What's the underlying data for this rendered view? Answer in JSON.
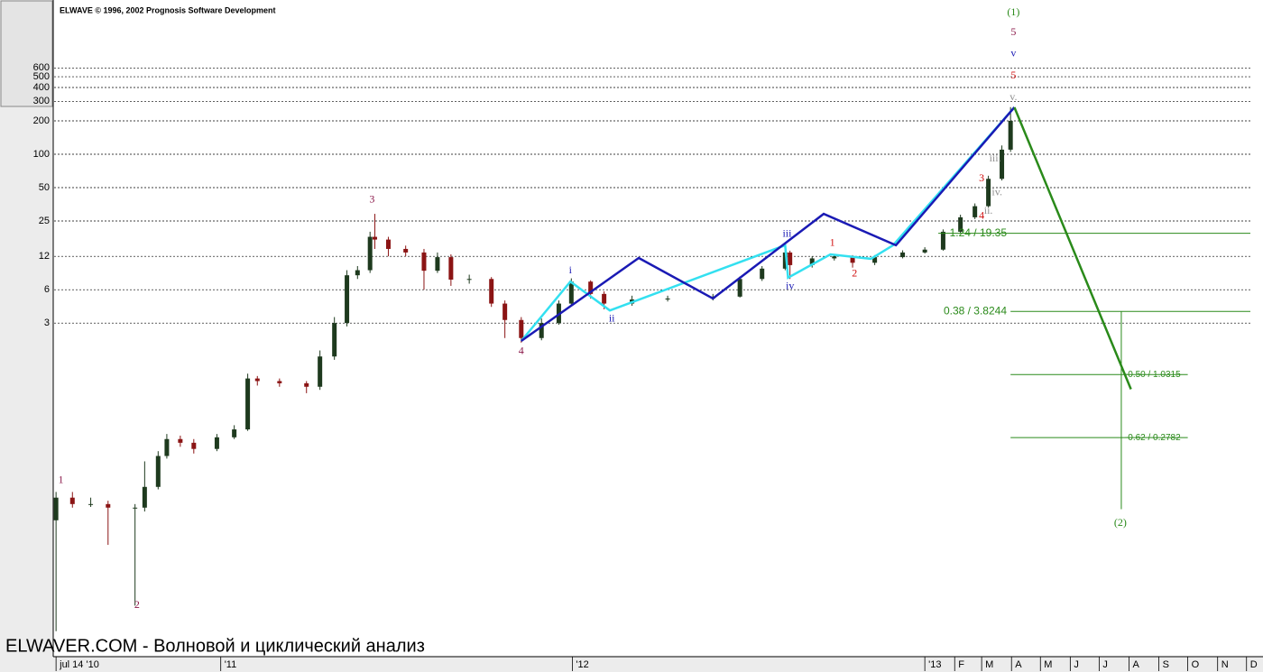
{
  "chart_data": {
    "type": "candlestick",
    "title": "ELWAVE © 1996, 2002 Prognosis Software Development",
    "footer": "ELWAVER.COM - Волновой и циклический анализ",
    "log_scale": true,
    "grid": true,
    "xlim": [
      -2,
      1240
    ],
    "ylim": [
      0.003,
      2460
    ],
    "yticks": [
      3,
      6,
      12,
      25,
      50,
      100,
      200,
      300,
      400,
      500,
      600
    ],
    "xticks": [
      {
        "value": 0,
        "label": "jul 14 '10"
      },
      {
        "value": 171,
        "label": "'11"
      },
      {
        "value": 536,
        "label": "'12"
      },
      {
        "value": 902,
        "label": "'13"
      },
      {
        "value": 933,
        "label": "F"
      },
      {
        "value": 961,
        "label": "M"
      },
      {
        "value": 992,
        "label": "A"
      },
      {
        "value": 1022,
        "label": "M"
      },
      {
        "value": 1053,
        "label": "J"
      },
      {
        "value": 1083,
        "label": "J"
      },
      {
        "value": 1114,
        "label": "A"
      },
      {
        "value": 1145,
        "label": "S"
      },
      {
        "value": 1175,
        "label": "O"
      },
      {
        "value": 1206,
        "label": "N"
      },
      {
        "value": 1236,
        "label": "D"
      }
    ],
    "up_color": "#1e3a1e",
    "down_color": "#8b1414",
    "candles": {
      "x": [
        0,
        17,
        36,
        54,
        82,
        92,
        106,
        115,
        129,
        143,
        167,
        185,
        199,
        209,
        232,
        260,
        274,
        289,
        302,
        313,
        326,
        331,
        345,
        363,
        382,
        396,
        410,
        429,
        452,
        466,
        483,
        504,
        522,
        535,
        555,
        569,
        598,
        635,
        682,
        710,
        733,
        757,
        762,
        785,
        808,
        827,
        850,
        879,
        902,
        921,
        939,
        954,
        968,
        982,
        991
      ],
      "open": [
        0.05,
        0.08,
        0.07,
        0.07,
        0.065,
        0.065,
        0.1,
        0.19,
        0.27,
        0.25,
        0.22,
        0.28,
        0.33,
        0.95,
        0.9,
        0.86,
        0.8,
        1.5,
        3,
        8.1,
        9,
        18,
        17,
        14,
        13,
        8.9,
        11.8,
        7.4,
        7.5,
        4.5,
        3.2,
        2.2,
        3,
        4.5,
        7.1,
        5.5,
        4.5,
        4.9,
        5,
        5.2,
        7.5,
        9.3,
        13,
        10,
        11.5,
        12,
        10.5,
        11.8,
        13,
        13.8,
        20,
        27,
        34,
        60,
        110
      ],
      "high": [
        0.09,
        0.09,
        0.08,
        0.075,
        0.07,
        0.17,
        0.21,
        0.3,
        0.29,
        0.27,
        0.3,
        0.36,
        1.05,
        1,
        0.95,
        0.9,
        1.7,
        3.4,
        9,
        9.8,
        20,
        29,
        18,
        15,
        14,
        13,
        12.5,
        8.2,
        7.8,
        4.8,
        3.4,
        3.3,
        4.8,
        7.6,
        7.3,
        5.8,
        5.3,
        5.3,
        5.5,
        7.9,
        9.8,
        15.5,
        13.5,
        12,
        12.5,
        12.3,
        12.3,
        13.6,
        14.5,
        21,
        28.5,
        36,
        64,
        120,
        266
      ],
      "low": [
        0.005,
        0.065,
        0.066,
        0.03,
        0.0085,
        0.06,
        0.095,
        0.18,
        0.23,
        0.2,
        0.21,
        0.27,
        0.32,
        0.82,
        0.8,
        0.7,
        0.75,
        1.4,
        2.8,
        7.5,
        8.5,
        14,
        12,
        12,
        6,
        8.5,
        6.5,
        6.8,
        4.2,
        2.2,
        2,
        2.1,
        2.9,
        4.3,
        5,
        4,
        4.3,
        4.7,
        4.8,
        5.1,
        7.2,
        9,
        7.5,
        9.5,
        11,
        9.5,
        10,
        11.5,
        12.7,
        13.5,
        19.5,
        26,
        33,
        58,
        105
      ],
      "close": [
        0.08,
        0.07,
        0.07,
        0.065,
        0.065,
        0.1,
        0.19,
        0.27,
        0.25,
        0.22,
        0.28,
        0.33,
        0.95,
        0.9,
        0.86,
        0.8,
        1.5,
        3,
        8.1,
        9,
        18,
        17,
        14,
        13,
        8.9,
        11.8,
        7.4,
        7.5,
        4.5,
        3.2,
        2.2,
        3,
        4.5,
        7.1,
        5.5,
        4.5,
        4.9,
        5,
        5.2,
        7.5,
        9.3,
        13,
        10,
        11.5,
        12,
        10.5,
        11.8,
        13,
        13.8,
        20,
        27,
        34,
        60,
        110,
        200
      ]
    },
    "lines": [
      {
        "color": "#33e0f0",
        "x": [
          483,
          534,
          575,
          757,
          760,
          804,
          846,
          869,
          995
        ],
        "values": [
          2.07,
          7.1,
          3.9,
          15.1,
          7.7,
          12.5,
          11.4,
          15.1,
          265
        ]
      },
      {
        "color": "#1a1ab4",
        "x": [
          483,
          605,
          682,
          797,
          872,
          995
        ],
        "values": [
          2.07,
          11.6,
          5.0,
          29,
          15.1,
          265
        ]
      },
      {
        "color": "#2a8a1a",
        "x": [
          995,
          1116
        ],
        "values": [
          265,
          0.76
        ]
      }
    ],
    "levels_color": "#2a8a1a",
    "levels": [
      {
        "label": "1.24 / 19.35",
        "value": 19.35,
        "x": [
          916,
          1240
        ]
      },
      {
        "label": "0.38 / 3.8244",
        "value": 3.8244,
        "x": [
          991,
          1240
        ]
      },
      {
        "label": "-0.50 / 1.0315",
        "value": 1.0315,
        "x": [
          991,
          1175
        ]
      },
      {
        "label": "-0.62 / 0.2782",
        "value": 0.2782,
        "x": [
          991,
          1175
        ]
      }
    ],
    "retracement": {
      "x": 1106,
      "values": [
        3.8244,
        0.063
      ]
    },
    "annotations": [
      {
        "text": "1",
        "x": 5,
        "y": 0.114,
        "color": "#8b1a4a"
      },
      {
        "text": "2",
        "x": 84,
        "y": 0.0085,
        "color": "#8b1a4a"
      },
      {
        "text": "3",
        "x": 328,
        "y": 38.5,
        "color": "#8b1a4a"
      },
      {
        "text": "4",
        "x": 483,
        "y": 1.66,
        "color": "#8b1a4a"
      },
      {
        "text": "(1)",
        "x": 994,
        "y": 1890,
        "color": "#2a8a1a"
      },
      {
        "text": "5",
        "x": 994,
        "y": 1250,
        "color": "#8b1a4a"
      },
      {
        "text": "v",
        "x": 994,
        "y": 800,
        "color": "#1a1ab4"
      },
      {
        "text": "5",
        "x": 994,
        "y": 510,
        "color": "#d01010"
      },
      {
        "text": "v.",
        "x": 994,
        "y": 325,
        "color": "#909090"
      },
      {
        "text": "i",
        "x": 534,
        "y": 8.9,
        "color": "#1a1ab4"
      },
      {
        "text": "ii",
        "x": 577,
        "y": 3.25,
        "color": "#1a1ab4"
      },
      {
        "text": "iii",
        "x": 759,
        "y": 18.9,
        "color": "#1a1ab4"
      },
      {
        "text": "iv",
        "x": 762,
        "y": 6.4,
        "color": "#1a1ab4"
      },
      {
        "text": "1",
        "x": 806,
        "y": 15.7,
        "color": "#d01010"
      },
      {
        "text": "2",
        "x": 829,
        "y": 8.3,
        "color": "#d01010"
      },
      {
        "text": "3",
        "x": 961,
        "y": 60,
        "color": "#d01010"
      },
      {
        "text": "4",
        "x": 961,
        "y": 27.5,
        "color": "#d01010"
      },
      {
        "text": "iii.",
        "x": 975,
        "y": 91,
        "color": "#909090"
      },
      {
        "text": "iv.",
        "x": 977,
        "y": 44.7,
        "color": "#909090"
      },
      {
        "text": "ii.",
        "x": 968,
        "y": 30.7,
        "color": "#909090"
      },
      {
        "text": "(2)",
        "x": 1105,
        "y": 0.047,
        "color": "#2a8a1a"
      }
    ]
  }
}
